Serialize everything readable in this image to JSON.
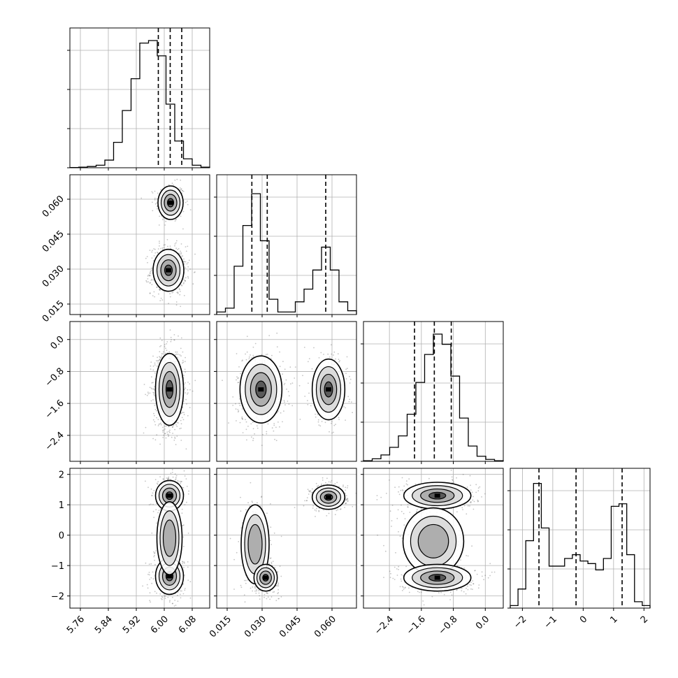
{
  "chart_data": {
    "type": "corner",
    "title": "",
    "grid": true,
    "colors": {
      "line": "#000000",
      "grid": "#b0b0b0",
      "scatter": "#555555"
    },
    "ticks": {
      "x0": [
        "5.76",
        "5.84",
        "5.92",
        "6.00",
        "6.08"
      ],
      "x1": [
        "0.015",
        "0.030",
        "0.045",
        "0.060"
      ],
      "x2": [
        "−2.4",
        "−1.6",
        "−0.8",
        "0.0"
      ],
      "x3": [
        "−2",
        "−1",
        "0",
        "1",
        "2"
      ],
      "y1": [
        "0.015",
        "0.030",
        "0.045",
        "0.060"
      ],
      "y2": [
        "−2.4",
        "−1.6",
        "−0.8",
        "0.0"
      ],
      "y3": [
        "−2",
        "−1",
        "0",
        "1",
        "2"
      ]
    },
    "params": [
      {
        "range": [
          5.73,
          6.13
        ],
        "quantiles": [
          5.983,
          6.017,
          6.05
        ],
        "hist": [
          0.002,
          0.005,
          0.01,
          0.02,
          0.06,
          0.2,
          0.45,
          0.7,
          0.98,
          1.0,
          0.88,
          0.5,
          0.21,
          0.07,
          0.02,
          0.005
        ]
      },
      {
        "range": [
          0.0105,
          0.0705
        ],
        "quantiles": [
          0.0256,
          0.0322,
          0.0573
        ],
        "hist": [
          0.02,
          0.05,
          0.38,
          0.7,
          0.95,
          0.58,
          0.12,
          0.02,
          0.02,
          0.1,
          0.2,
          0.35,
          0.53,
          0.35,
          0.1,
          0.03
        ]
      },
      {
        "range": [
          -3.05,
          0.45
        ],
        "quantiles": [
          -1.772,
          -1.276,
          -0.852
        ],
        "hist": [
          0.005,
          0.02,
          0.05,
          0.11,
          0.2,
          0.37,
          0.62,
          0.84,
          1.0,
          0.92,
          0.67,
          0.34,
          0.12,
          0.04,
          0.015,
          0.005
        ]
      },
      {
        "range": [
          -2.4,
          2.2
        ],
        "quantiles": [
          -1.455,
          -0.235,
          1.281
        ],
        "hist": [
          0.02,
          0.15,
          0.53,
          0.98,
          0.63,
          0.33,
          0.33,
          0.39,
          0.42,
          0.37,
          0.35,
          0.3,
          0.39,
          0.8,
          0.82,
          0.42,
          0.05,
          0.02
        ]
      }
    ],
    "clusters": [
      [
        {
          "m": [
            6.018,
            0.0585
          ],
          "s": [
            0.018,
            0.0036
          ],
          "w": 0.36
        },
        {
          "m": [
            6.012,
            0.0295
          ],
          "s": [
            0.022,
            0.0045
          ],
          "w": 0.64
        }
      ],
      [
        {
          "m": [
            6.015,
            -1.25
          ],
          "s": [
            0.02,
            0.45
          ],
          "w": 1.0
        }
      ],
      [
        {
          "m": [
            0.0295,
            -1.25
          ],
          "s": [
            0.0045,
            0.42
          ],
          "w": 0.64
        },
        {
          "m": [
            0.0585,
            -1.25
          ],
          "s": [
            0.0035,
            0.38
          ],
          "w": 0.36
        }
      ],
      [
        {
          "m": [
            6.015,
            1.3
          ],
          "s": [
            0.02,
            0.25
          ],
          "w": 0.36
        },
        {
          "m": [
            6.015,
            -1.35
          ],
          "s": [
            0.02,
            0.3
          ],
          "w": 0.44
        },
        {
          "m": [
            6.015,
            -0.1
          ],
          "s": [
            0.018,
            0.6
          ],
          "w": 0.2
        }
      ],
      [
        {
          "m": [
            0.0585,
            1.25
          ],
          "s": [
            0.0035,
            0.2
          ],
          "w": 0.36
        },
        {
          "m": [
            0.027,
            -0.3
          ],
          "s": [
            0.003,
            0.65
          ],
          "w": 0.28
        },
        {
          "m": [
            0.0315,
            -1.4
          ],
          "s": [
            0.0025,
            0.22
          ],
          "w": 0.36
        }
      ],
      [
        {
          "m": [
            -1.2,
            1.3
          ],
          "s": [
            0.42,
            0.22
          ],
          "w": 0.36
        },
        {
          "m": [
            -1.3,
            -0.2
          ],
          "s": [
            0.38,
            0.55
          ],
          "w": 0.22
        },
        {
          "m": [
            -1.2,
            -1.4
          ],
          "s": [
            0.42,
            0.22
          ],
          "w": 0.42
        }
      ]
    ]
  }
}
